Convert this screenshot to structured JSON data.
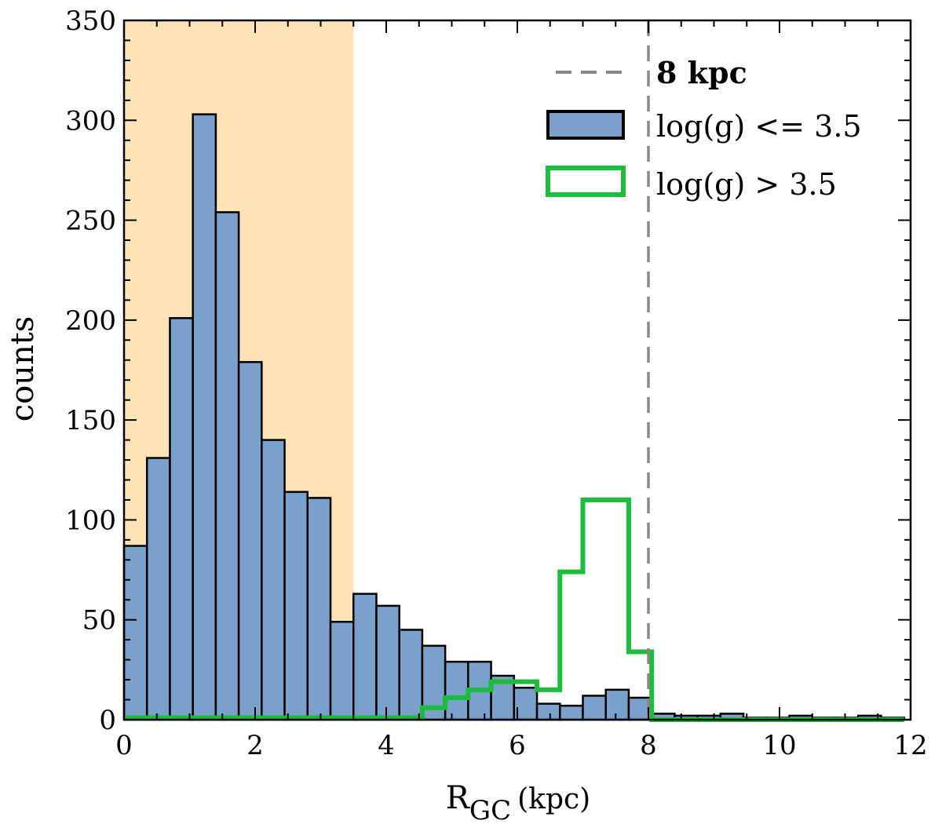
{
  "chart_data": {
    "type": "bar",
    "title": "",
    "xlabel_main": "R",
    "xlabel_sub": "GC",
    "xlabel_unit": "(kpc)",
    "ylabel": "counts",
    "xlim": [
      0,
      12
    ],
    "ylim": [
      0,
      350
    ],
    "xticks": [
      0,
      2,
      4,
      6,
      8,
      10,
      12
    ],
    "yticks": [
      0,
      50,
      100,
      150,
      200,
      250,
      300,
      350
    ],
    "bin_width": 0.35,
    "shaded_region": {
      "x0": 0,
      "x1": 3.5,
      "color": "#fde3b5"
    },
    "vline": {
      "x": 8,
      "label": "8 kpc",
      "color": "#888888"
    },
    "series": [
      {
        "name": "log(g) <= 3.5",
        "style": "filled",
        "fill": "#7aa0cc",
        "edge": "#000000",
        "bin_edges": [
          0,
          0.35,
          0.7,
          1.05,
          1.4,
          1.75,
          2.1,
          2.45,
          2.8,
          3.15,
          3.5,
          3.85,
          4.2,
          4.55,
          4.9,
          5.25,
          5.6,
          5.95,
          6.3,
          6.65,
          7.0,
          7.35,
          7.7,
          8.05,
          8.4,
          8.75,
          9.1,
          9.45,
          9.8,
          10.15,
          10.5,
          10.85,
          11.2,
          11.55,
          11.9
        ],
        "values": [
          87,
          131,
          201,
          303,
          254,
          179,
          140,
          114,
          111,
          49,
          63,
          57,
          45,
          37,
          29,
          29,
          22,
          16,
          8,
          7,
          12,
          15,
          11,
          3,
          2,
          2,
          3,
          1,
          1,
          2,
          1,
          1,
          2,
          1
        ]
      },
      {
        "name": "log(g) > 3.5",
        "style": "step",
        "color": "#1dbd3c",
        "bin_edges": [
          0,
          0.35,
          0.7,
          1.05,
          1.4,
          1.75,
          2.1,
          2.45,
          2.8,
          3.15,
          3.5,
          3.85,
          4.2,
          4.55,
          4.9,
          5.25,
          5.6,
          5.95,
          6.3,
          6.65,
          7.0,
          7.35,
          7.7,
          8.05,
          8.4,
          8.75,
          9.1,
          9.45,
          9.8,
          10.15,
          10.5,
          10.85,
          11.2,
          11.55,
          11.9
        ],
        "values": [
          1,
          1,
          1,
          1,
          1,
          1,
          1,
          1,
          1,
          1,
          1,
          1,
          1,
          6,
          11,
          15,
          19,
          19,
          15,
          74,
          110,
          110,
          34,
          0,
          0,
          0,
          0,
          0,
          0,
          0,
          0,
          0,
          0,
          0
        ]
      }
    ],
    "legend": {
      "position": "top-right",
      "entries": [
        "8 kpc",
        "log(g) <= 3.5",
        "log(g) > 3.5"
      ]
    }
  }
}
